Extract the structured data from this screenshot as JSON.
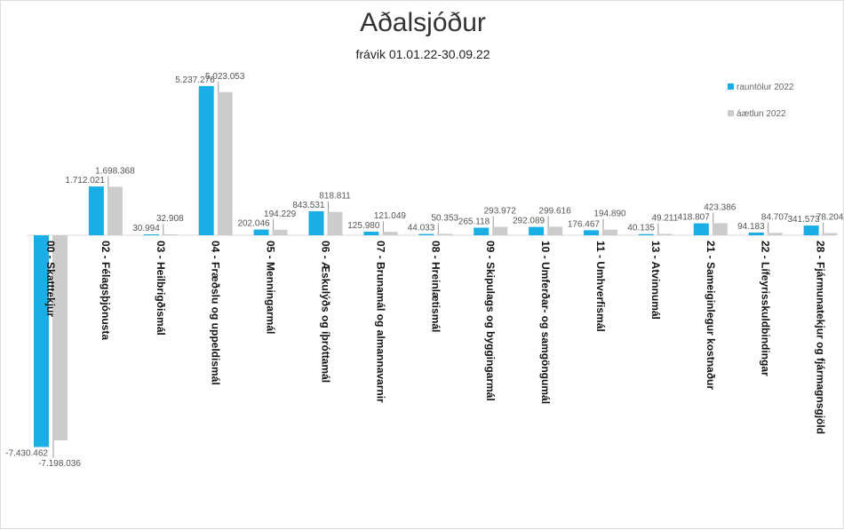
{
  "chart_data": {
    "type": "bar",
    "title": "Aðalsjóður",
    "subtitle": "frávik 01.01.22-30.09.22",
    "categories": [
      "00 - Skatttekjur",
      "02 - Félagsþjónusta",
      "03 - Heilbrigðismál",
      "04 - Fræðslu og uppeldismál",
      "05 - Menningarmál",
      "06 - Æskulýðs og íþróttamál",
      "07 - Brunamál og almannavarnir",
      "08 - Hreinlætismál",
      "09 - Skipulags og byggingarmál",
      "10 - Umferðar- og samgöngumál",
      "11 - Umhverfismál",
      "13 - Atvinnumál",
      "21 - Sameiginlegur kostnaður",
      "22 - Lífeyrisskuldbindingar",
      "28 - Fjármunatekjur og fjármagnsgjöld"
    ],
    "series": [
      {
        "name": "rauntölur 2022",
        "color": "#1aaee6",
        "values": [
          -7430462,
          1712021,
          30994,
          5237276,
          202046,
          843531,
          125980,
          44033,
          265118,
          292089,
          176467,
          40135,
          418807,
          94183,
          341573
        ],
        "labels": [
          "-7.430.462",
          "1.712.021",
          "30.994",
          "5.237.276",
          "202.046",
          "843.531",
          "125.980",
          "44.033",
          "265.118",
          "292.089",
          "176.467",
          "40.135",
          "418.807",
          "94.183",
          "341.573"
        ]
      },
      {
        "name": "áætlun 2022",
        "color": "#cccccc",
        "values": [
          -7198036,
          1698368,
          32908,
          5023053,
          194229,
          818811,
          121049,
          50353,
          293972,
          299616,
          194890,
          49211,
          423386,
          84707,
          78204
        ],
        "labels": [
          "-7.198.036",
          "1.698.368",
          "32.908",
          "5.023.053",
          "194.229",
          "818.811",
          "121.049",
          "50.353",
          "293.972",
          "299.616",
          "194.890",
          "49.211",
          "423.386",
          "84.707",
          "78.204"
        ]
      }
    ],
    "legend_position": "top-right",
    "grid": false
  }
}
